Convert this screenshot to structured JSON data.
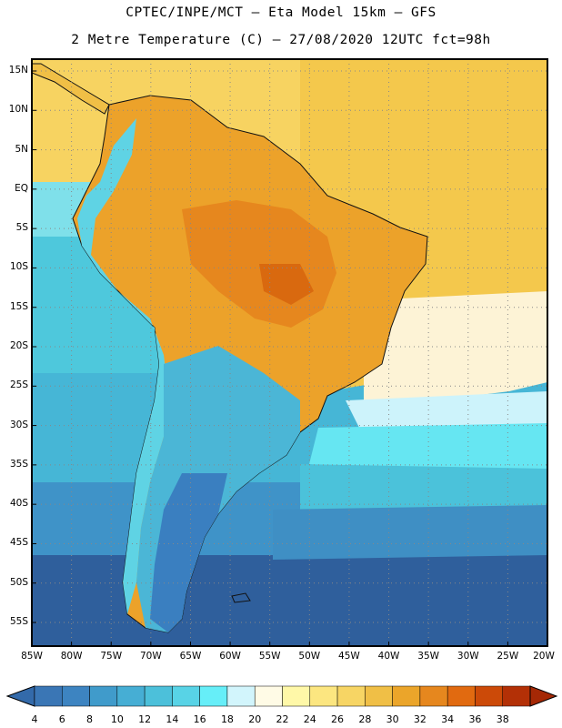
{
  "header": {
    "line1": "CPTEC/INPE/MCT –  Eta Model 15km – GFS",
    "line2": "2 Metre Temperature (C) – 27/08/2020 12UTC fct=98h"
  },
  "map": {
    "lat_labels": [
      "15N",
      "10N",
      "5N",
      "EQ",
      "5S",
      "10S",
      "15S",
      "20S",
      "25S",
      "30S",
      "35S",
      "40S",
      "45S",
      "50S",
      "55S"
    ],
    "lon_labels": [
      "85W",
      "80W",
      "75W",
      "70W",
      "65W",
      "60W",
      "55W",
      "50W",
      "45W",
      "40W",
      "35W",
      "30W",
      "25W",
      "20W"
    ],
    "lat_range": [
      16.5,
      -58
    ],
    "lon_range": [
      -85,
      -20
    ],
    "grid": "dotted"
  },
  "colorbar": {
    "labels": [
      "4",
      "6",
      "8",
      "10",
      "12",
      "14",
      "16",
      "18",
      "20",
      "22",
      "24",
      "26",
      "28",
      "30",
      "32",
      "34",
      "36",
      "38"
    ],
    "colors": [
      "#3a76b5",
      "#3d84c1",
      "#409bcb",
      "#46aed4",
      "#4cc0da",
      "#58d3e6",
      "#66eef8",
      "#d2f5fc",
      "#fffbe6",
      "#fff8a8",
      "#fce680",
      "#f7d564",
      "#f0bf46",
      "#eba52a",
      "#e6871e",
      "#e16a10",
      "#cc4a08",
      "#b33006"
    ]
  }
}
